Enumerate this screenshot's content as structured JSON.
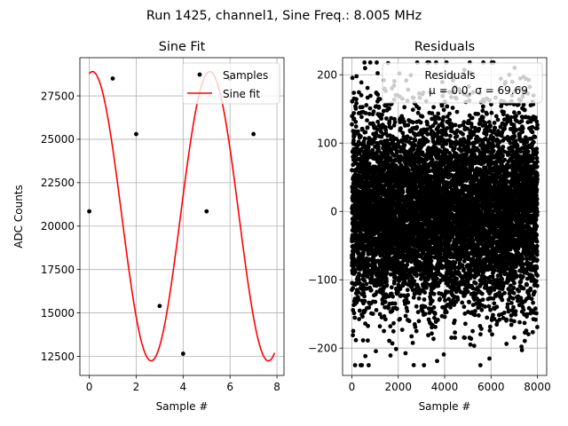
{
  "figure": {
    "suptitle": "Run 1425, channel1, Sine Freq.: 8.005 MHz"
  },
  "chart_data": [
    {
      "type": "line",
      "title": "Sine Fit",
      "xlabel": "Sample #",
      "ylabel": "ADC Counts",
      "xlim": [
        -0.4,
        8.3
      ],
      "ylim": [
        11400,
        29700
      ],
      "xticks": [
        0,
        2,
        4,
        6,
        8
      ],
      "yticks": [
        12500,
        15000,
        17500,
        20000,
        22500,
        25000,
        27500
      ],
      "xtick_labels": [
        "0",
        "2",
        "4",
        "6",
        "8"
      ],
      "ytick_labels": [
        "12500",
        "15000",
        "17500",
        "20000",
        "22500",
        "25000",
        "27500"
      ],
      "grid": true,
      "legend_position": "top-right",
      "series": [
        {
          "name": "Samples",
          "kind": "points",
          "color": "#000000",
          "x": [
            0,
            1,
            2,
            3,
            4,
            5,
            6,
            7
          ],
          "y": [
            20850,
            28500,
            25300,
            15400,
            12650,
            20850,
            28500,
            25300
          ]
        },
        {
          "name": "Sine fit",
          "kind": "line",
          "color": "#ff0000",
          "fit": {
            "offset": 20570,
            "amplitude": 8330,
            "cycles_per_sample": 0.2001,
            "phase_deg": 80,
            "x_range": [
              0,
              7.9
            ]
          }
        }
      ]
    },
    {
      "type": "scatter",
      "title": "Residuals",
      "xlabel": "Sample #",
      "ylabel": "",
      "xlim": [
        -400,
        8400
      ],
      "ylim": [
        -240,
        225
      ],
      "xticks": [
        0,
        2000,
        4000,
        6000,
        8000
      ],
      "yticks": [
        -200,
        -100,
        0,
        100,
        200
      ],
      "xtick_labels": [
        "0",
        "2000",
        "4000",
        "6000",
        "8000"
      ],
      "ytick_labels": [
        "−200",
        "−100",
        "0",
        "100",
        "200"
      ],
      "grid": true,
      "legend_position": "top-right",
      "legend_title": "Residuals",
      "legend_label": "μ = 0.0, σ = 69.69",
      "series": [
        {
          "name": "Residuals",
          "color": "#000000",
          "distribution": {
            "mean": 0.0,
            "std": 69.69,
            "n_points": 8000,
            "x_range": [
              0,
              7999
            ]
          }
        }
      ]
    }
  ]
}
